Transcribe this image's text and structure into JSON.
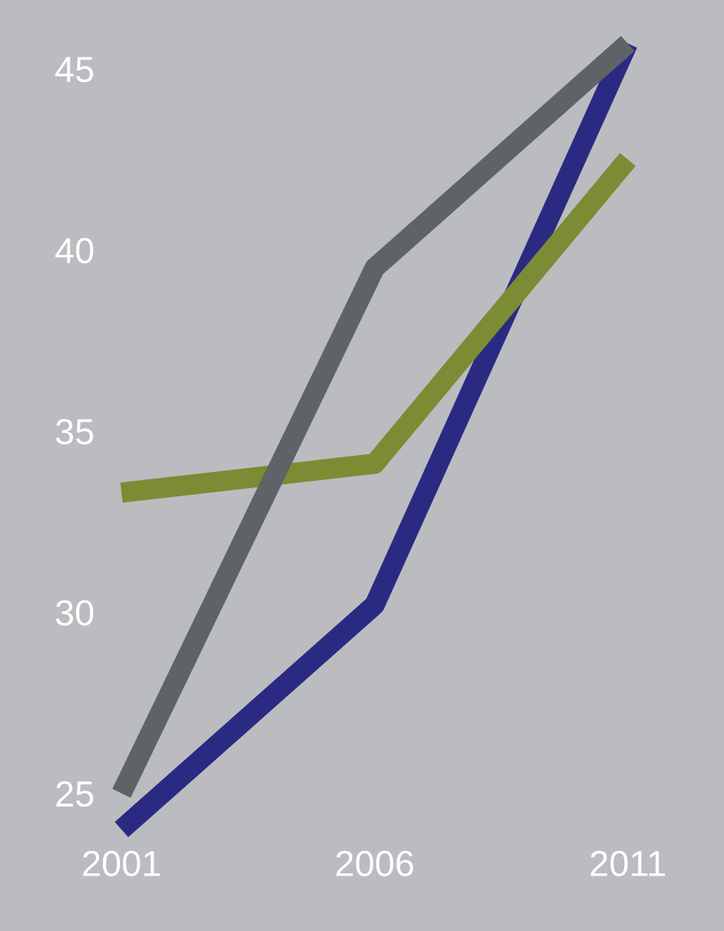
{
  "chart_data": {
    "type": "line",
    "categories": [
      "2001",
      "2006",
      "2011"
    ],
    "series": [
      {
        "color": "#2b2a82",
        "values": [
          24.0,
          30.2,
          45.7
        ]
      },
      {
        "color": "#7b8c34",
        "values": [
          33.3,
          34.1,
          42.5
        ]
      },
      {
        "color": "#5d6366",
        "values": [
          25.0,
          39.5,
          45.7
        ]
      }
    ],
    "ylim": [
      21.2,
      46.9
    ],
    "yticks": [
      25,
      30,
      35,
      40,
      45
    ],
    "grid": false,
    "legend": false,
    "marker": "none",
    "line_style": "solid"
  }
}
